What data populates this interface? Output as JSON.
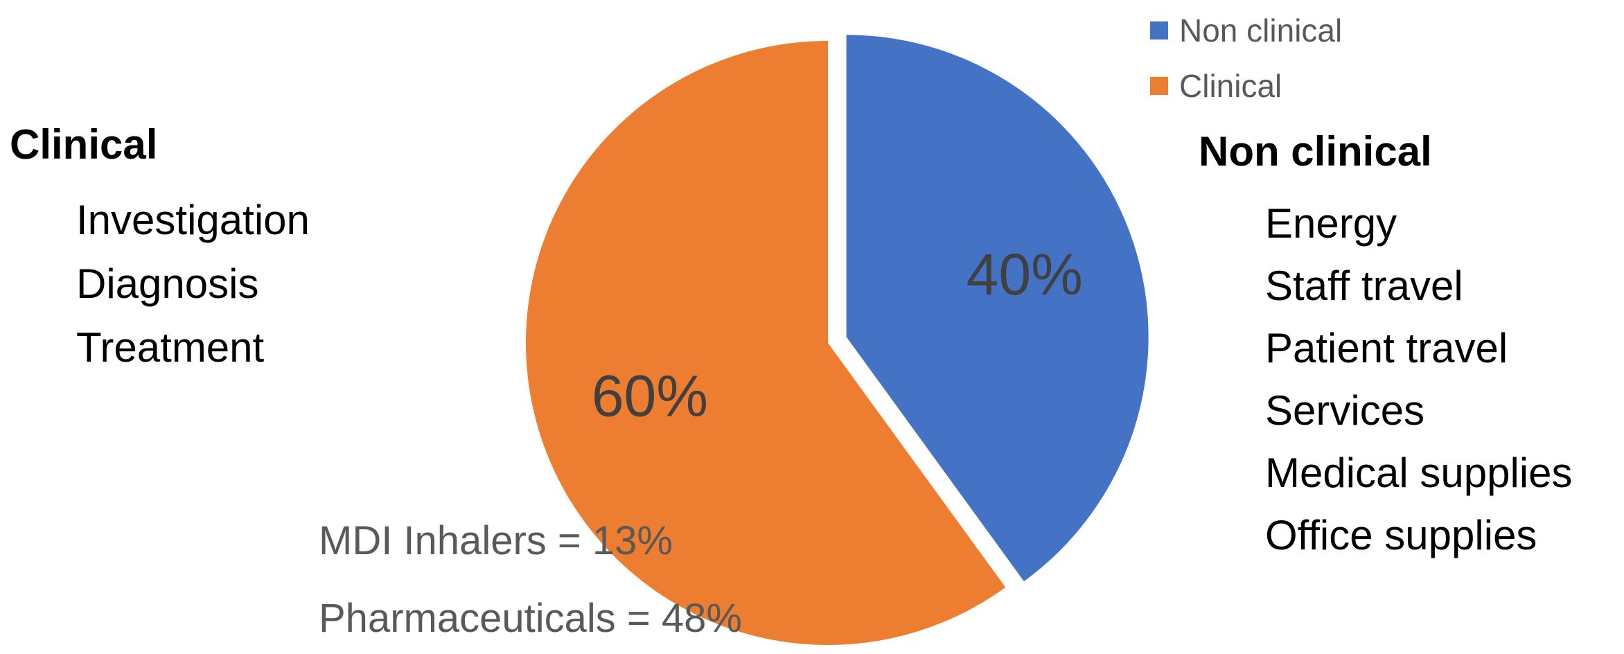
{
  "chart_data": {
    "type": "pie",
    "slices": [
      {
        "name": "Non clinical",
        "value": 40,
        "label": "40%",
        "color": "#4472C4",
        "exploded": true
      },
      {
        "name": "Clinical",
        "value": 60,
        "label": "60%",
        "color": "#ED7D31",
        "exploded": false
      }
    ],
    "legend": {
      "position": "top-right",
      "entries": [
        {
          "label": "Non clinical",
          "color": "#4472C4"
        },
        {
          "label": "Clinical",
          "color": "#ED7D31"
        }
      ]
    },
    "annotations": [
      "MDI Inhalers = 13%",
      "Pharmaceuticals = 48%"
    ]
  },
  "clinical": {
    "title": "Clinical",
    "items": [
      "Investigation",
      "Diagnosis",
      "Treatment"
    ]
  },
  "non_clinical": {
    "title": "Non clinical",
    "items": [
      "Energy",
      "Staff travel",
      "Patient travel",
      "Services",
      "Medical supplies",
      "Office supplies"
    ]
  }
}
